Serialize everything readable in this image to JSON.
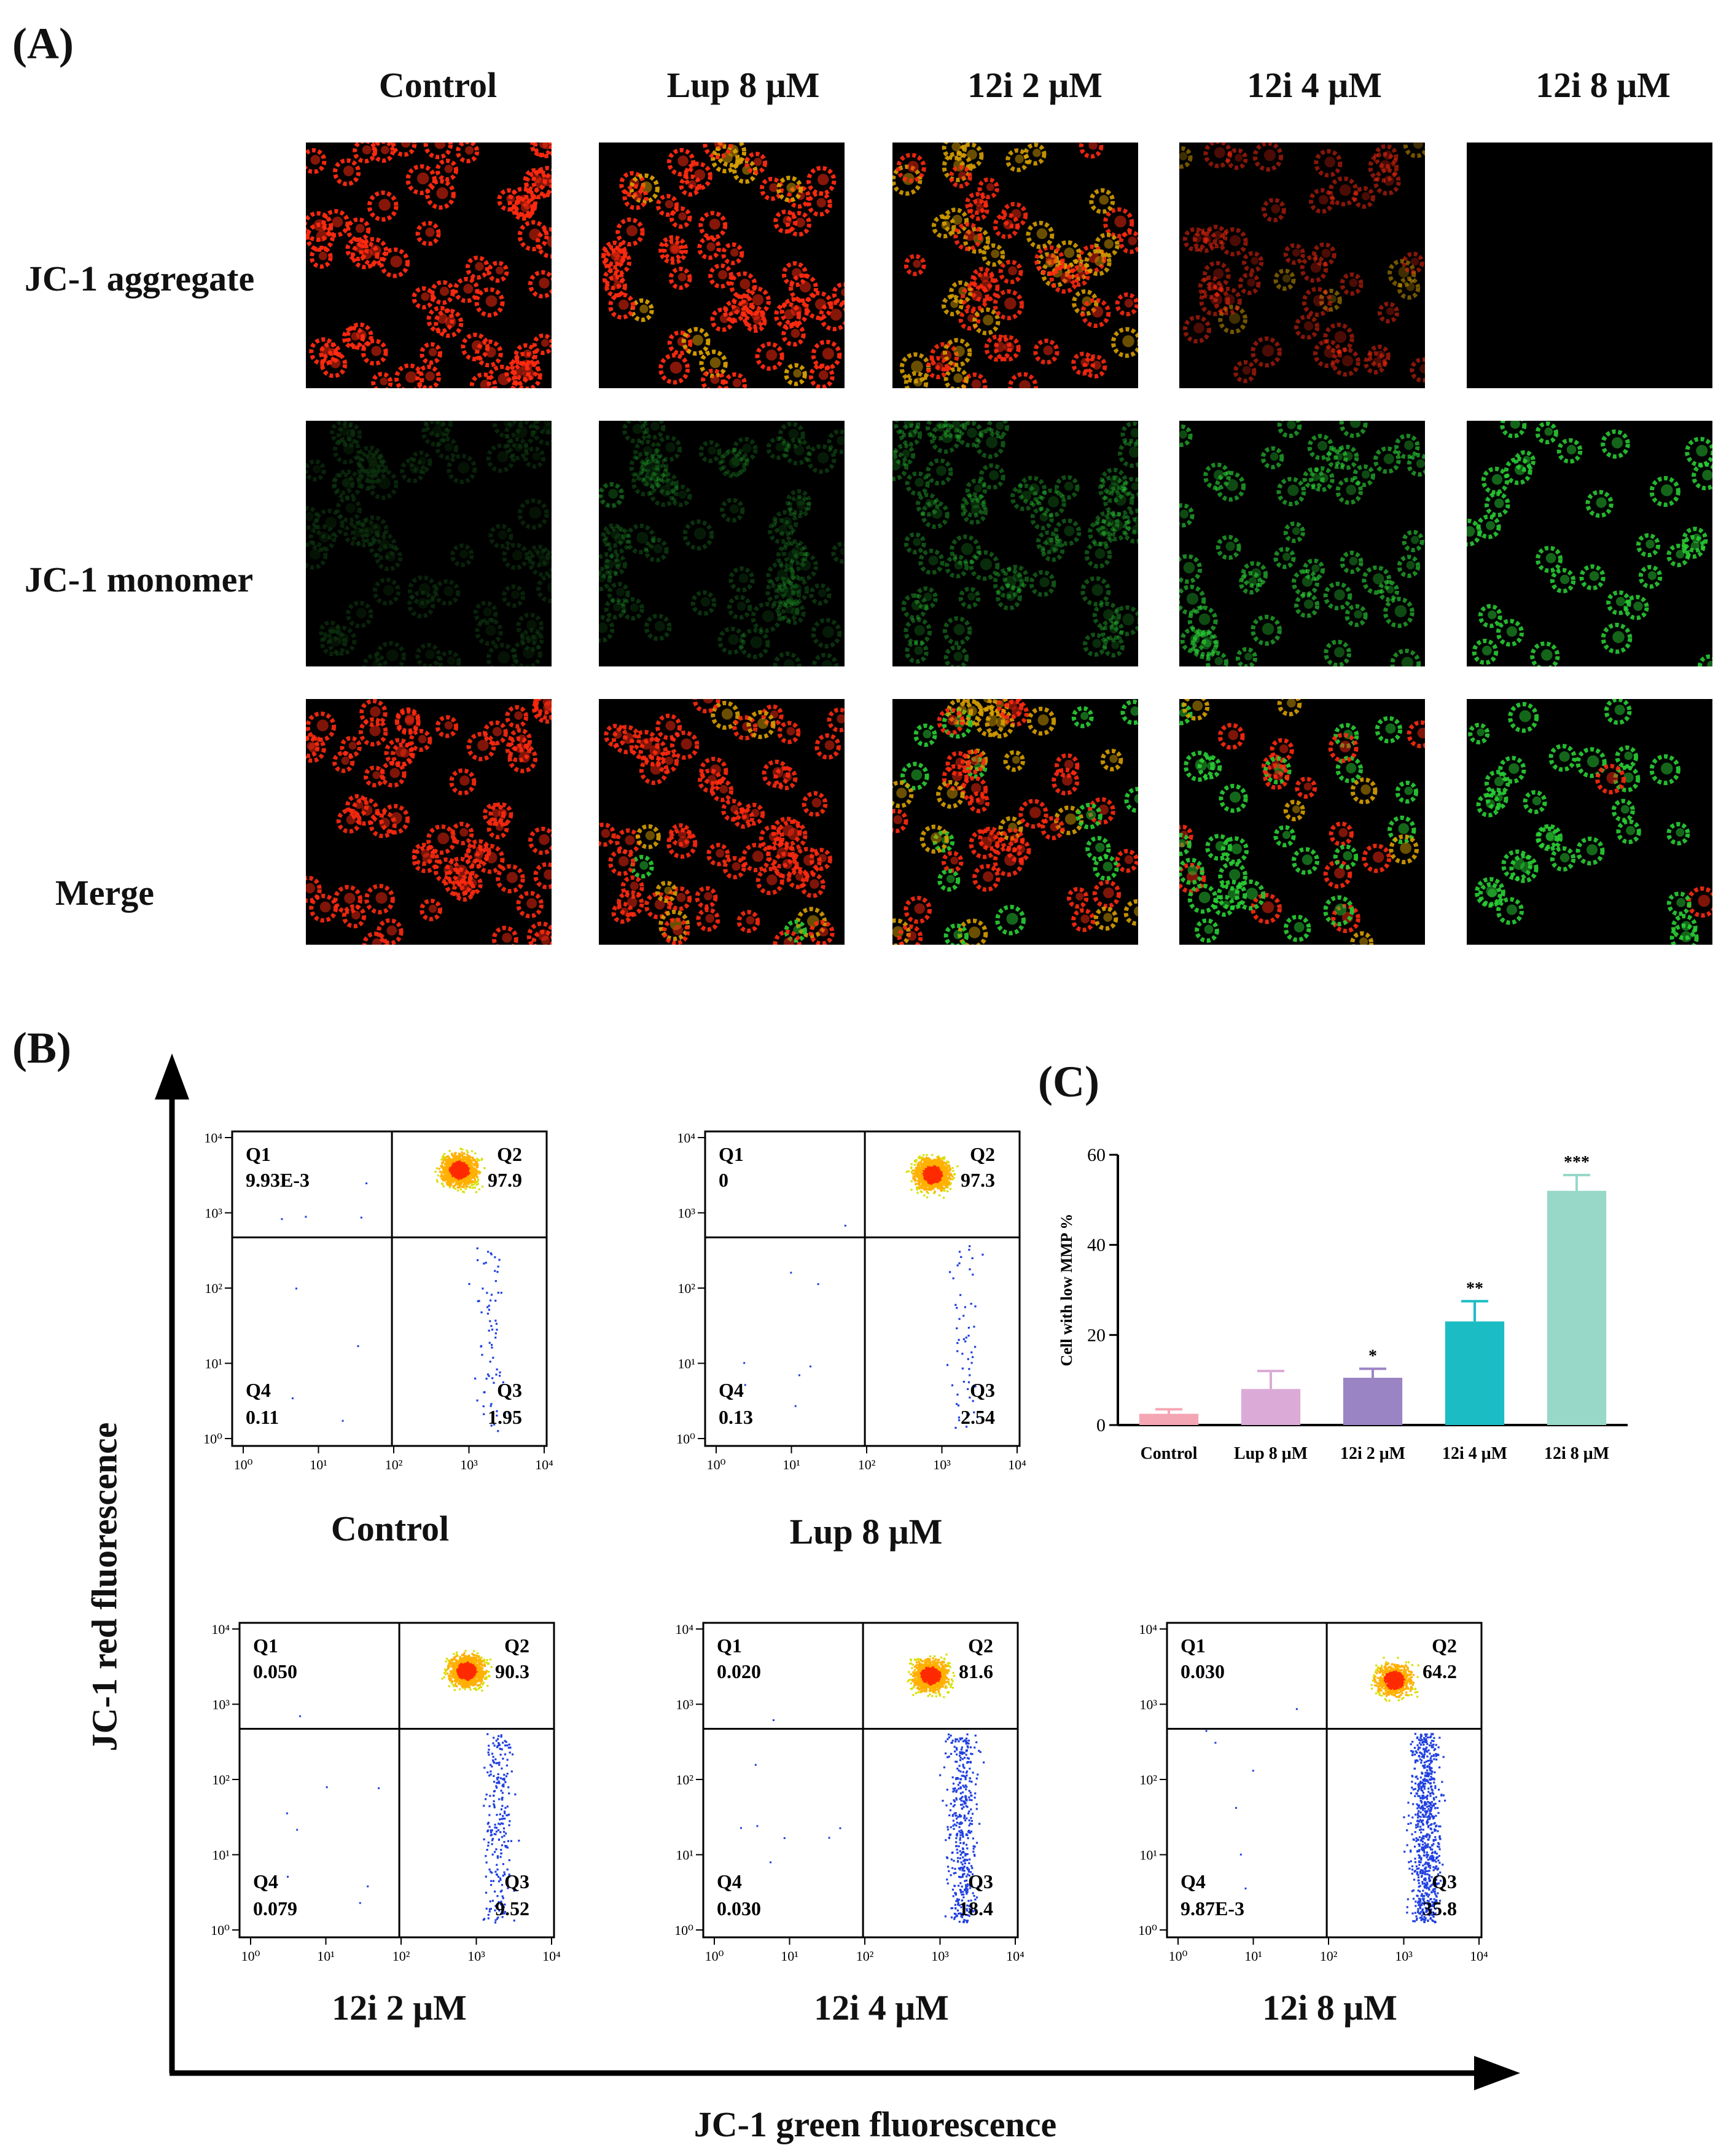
{
  "panelA": {
    "letter": "(A)",
    "columns": [
      "Control",
      "Lup 8 μM",
      "12i 2 μM",
      "12i 4 μM",
      "12i 8 μM"
    ],
    "rows": [
      "JC-1 aggregate",
      "JC-1 monomer",
      "Merge"
    ],
    "colors": {
      "red": "#ff2200",
      "green": "#22c030",
      "yellow": "#d0b000"
    }
  },
  "panelB": {
    "letter": "(B)",
    "y_axis_label": "JC-1 red fluorescence",
    "x_axis_label": "JC-1 green fluorescence",
    "tick_labels": [
      "10⁰",
      "10¹",
      "10²",
      "10³",
      "10⁴"
    ],
    "plots": [
      {
        "title": "Control",
        "Q1": "9.93E-3",
        "Q2": "97.9",
        "Q3": "1.95",
        "Q4": "0.11",
        "q1_label": "Q1",
        "q2_label": "Q2",
        "q3_label": "Q3",
        "q4_label": "Q4"
      },
      {
        "title": "Lup 8 μM",
        "Q1": "0",
        "Q2": "97.3",
        "Q3": "2.54",
        "Q4": "0.13",
        "q1_label": "Q1",
        "q2_label": "Q2",
        "q3_label": "Q3",
        "q4_label": "Q4"
      },
      {
        "title": "12i 2 μM",
        "Q1": "0.050",
        "Q2": "90.3",
        "Q3": "9.52",
        "Q4": "0.079",
        "q1_label": "Q1",
        "q2_label": "Q2",
        "q3_label": "Q3",
        "q4_label": "Q4"
      },
      {
        "title": "12i 4 μM",
        "Q1": "0.020",
        "Q2": "81.6",
        "Q3": "18.4",
        "Q4": "0.030",
        "q1_label": "Q1",
        "q2_label": "Q2",
        "q3_label": "Q3",
        "q4_label": "Q4"
      },
      {
        "title": "12i 8 μM",
        "Q1": "0.030",
        "Q2": "64.2",
        "Q3": "35.8",
        "Q4": "9.87E-3",
        "q1_label": "Q1",
        "q2_label": "Q2",
        "q3_label": "Q3",
        "q4_label": "Q4"
      }
    ]
  },
  "panelC": {
    "letter": "(C)",
    "chart_data": {
      "type": "bar",
      "ylabel": "Cell with low MMP %",
      "ylim": [
        0,
        60
      ],
      "yticks": [
        0,
        20,
        40,
        60
      ],
      "categories": [
        "Control",
        "Lup 8 μM",
        "12i 2 μM",
        "12i 4 μM",
        "12i 8 μM"
      ],
      "values": [
        2.5,
        8,
        10.5,
        23,
        52
      ],
      "errors": [
        1,
        4,
        2,
        4.5,
        3.5
      ],
      "significance": [
        "",
        "",
        "*",
        "**",
        "***"
      ],
      "colors": [
        "#f4a6b4",
        "#dcaad6",
        "#9b84c4",
        "#1bbcc4",
        "#97d8c8"
      ]
    }
  }
}
